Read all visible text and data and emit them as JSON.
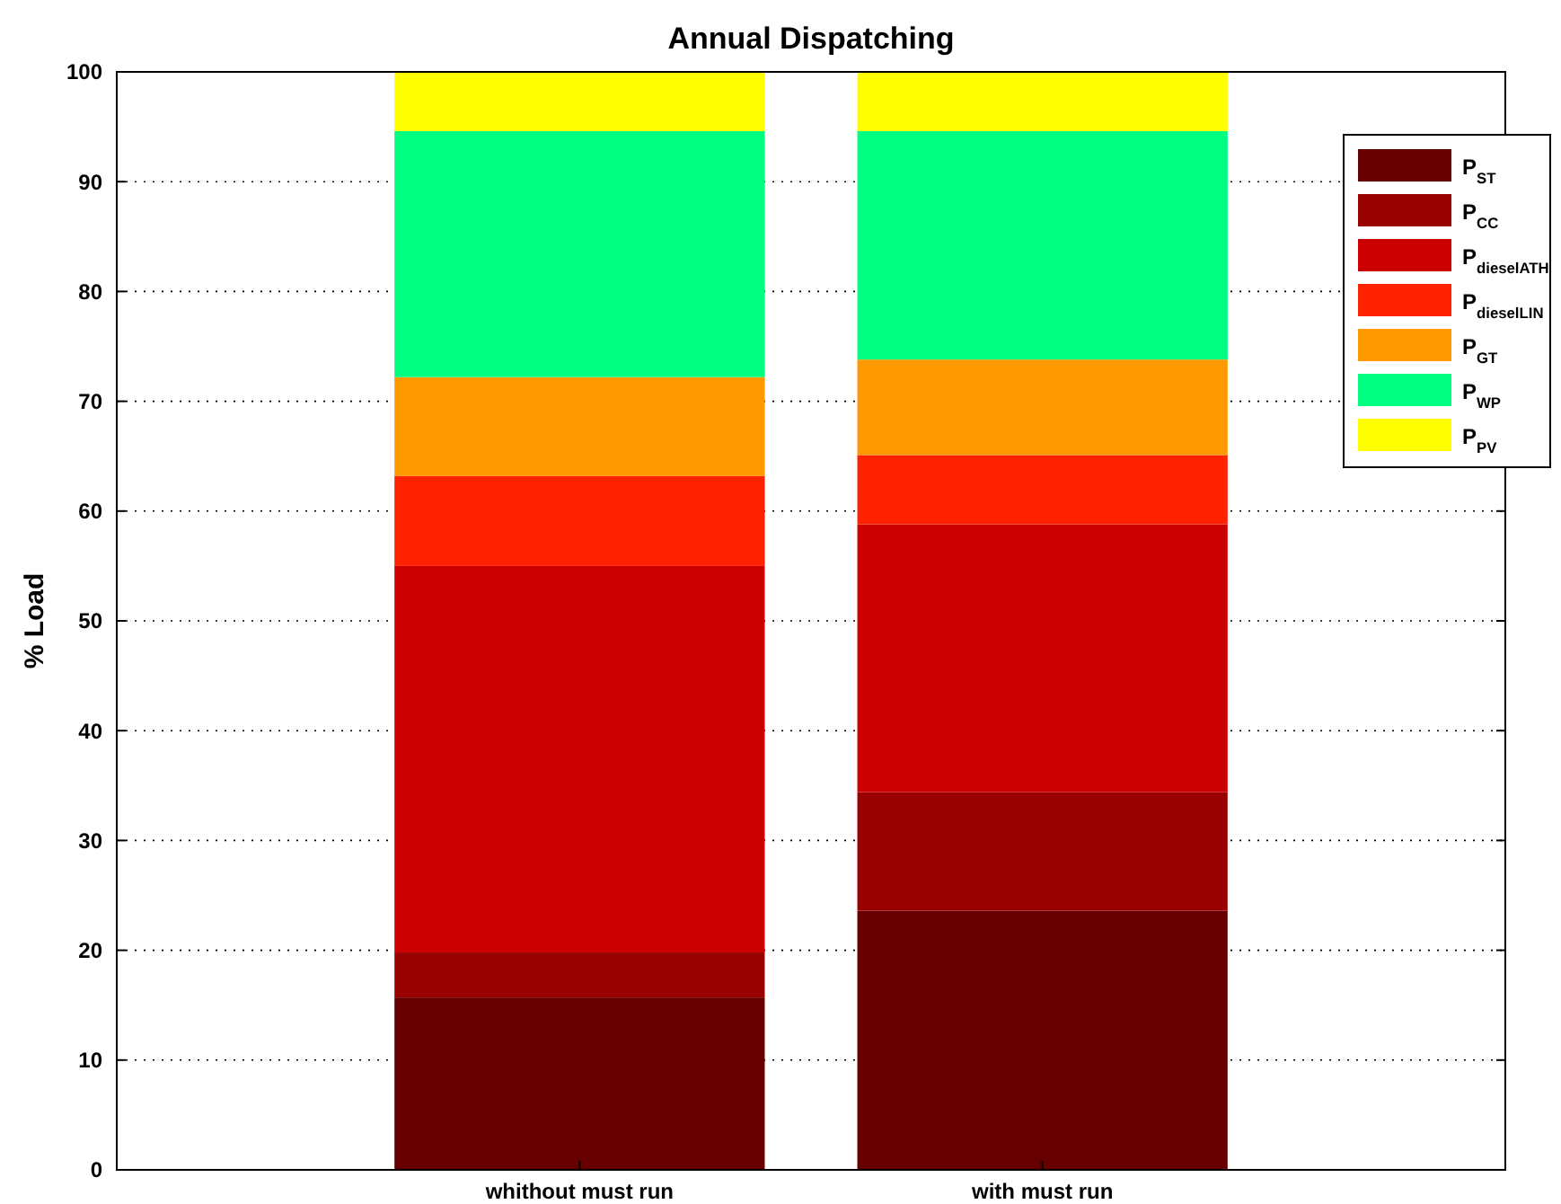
{
  "chart_data": {
    "type": "bar",
    "title": "Annual Dispatching",
    "ylabel": "% Load",
    "categories": [
      "whithout must run",
      "with must run"
    ],
    "stacked": true,
    "series": [
      {
        "name": "P$_{ST}$",
        "color": "#660000",
        "values": [
          15.7,
          23.6
        ]
      },
      {
        "name": "P$_{CC}$",
        "color": "#990000",
        "values": [
          4.1,
          10.8
        ]
      },
      {
        "name": "P$_{dieselATH}$",
        "color": "#cc0000",
        "values": [
          35.2,
          24.4
        ]
      },
      {
        "name": "P$_{dieselLIN}$",
        "color": "#ff2200",
        "values": [
          8.2,
          6.3
        ]
      },
      {
        "name": "P$_{GT}$",
        "color": "#ff9900",
        "values": [
          9.0,
          8.7
        ]
      },
      {
        "name": "P$_{WP}$",
        "color": "#00ff80",
        "values": [
          22.4,
          20.8
        ]
      },
      {
        "name": "P$_{PV}$",
        "color": "#ffff00",
        "values": [
          5.4,
          5.4
        ]
      }
    ],
    "ylim": [
      0,
      100
    ],
    "yticks": [
      0,
      10,
      20,
      30,
      40,
      50,
      60,
      70,
      80,
      90,
      100
    ],
    "grid": "y",
    "legend": "top right"
  }
}
